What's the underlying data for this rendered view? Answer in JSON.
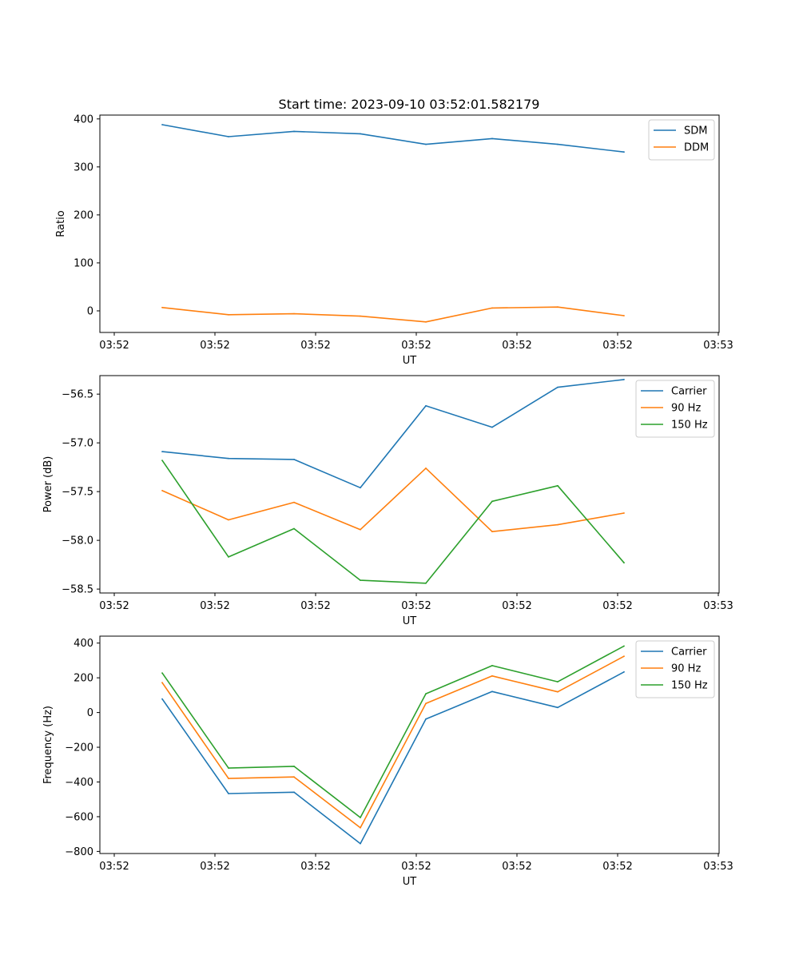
{
  "chart_data": [
    {
      "type": "line",
      "title": "Start time: 2023-09-10 03:52:01.582179",
      "xlabel": "UT",
      "ylabel": "Ratio",
      "xtick_labels": [
        "03:52",
        "03:52",
        "03:52",
        "03:52",
        "03:52",
        "03:52",
        "03:53"
      ],
      "ylim": [
        -45,
        408
      ],
      "yticks": [
        0,
        100,
        200,
        300,
        400
      ],
      "ytick_labels": [
        "0",
        "100",
        "200",
        "300",
        "400"
      ],
      "legend_position": "top-right",
      "series": [
        {
          "name": "SDM",
          "color": "#1f77b4",
          "values": [
            388,
            363,
            374,
            369,
            347,
            359,
            347,
            331
          ]
        },
        {
          "name": "DDM",
          "color": "#ff7f0e",
          "values": [
            7,
            -8,
            -6,
            -11,
            -23,
            6,
            8,
            -10
          ]
        }
      ]
    },
    {
      "type": "line",
      "title": "",
      "xlabel": "UT",
      "ylabel": "Power (dB)",
      "xtick_labels": [
        "03:52",
        "03:52",
        "03:52",
        "03:52",
        "03:52",
        "03:52",
        "03:53"
      ],
      "ylim": [
        -58.54,
        -56.31
      ],
      "yticks": [
        -58.5,
        -58.0,
        -57.5,
        -57.0,
        -56.5
      ],
      "ytick_labels": [
        "−58.5",
        "−58.0",
        "−57.5",
        "−57.0",
        "−56.5"
      ],
      "legend_position": "top-right",
      "series": [
        {
          "name": "Carrier",
          "color": "#1f77b4",
          "values": [
            -57.09,
            -57.16,
            -57.17,
            -57.46,
            -56.62,
            -56.84,
            -56.43,
            -56.35
          ]
        },
        {
          "name": "90 Hz",
          "color": "#ff7f0e",
          "values": [
            -57.49,
            -57.79,
            -57.61,
            -57.89,
            -57.26,
            -57.91,
            -57.84,
            -57.72
          ]
        },
        {
          "name": "150 Hz",
          "color": "#2ca02c",
          "values": [
            -57.18,
            -58.17,
            -57.88,
            -58.41,
            -58.44,
            -57.6,
            -57.44,
            -58.23
          ]
        }
      ]
    },
    {
      "type": "line",
      "title": "",
      "xlabel": "UT",
      "ylabel": "Frequency (Hz)",
      "xtick_labels": [
        "03:52",
        "03:52",
        "03:52",
        "03:52",
        "03:52",
        "03:52",
        "03:53"
      ],
      "ylim": [
        -812,
        440
      ],
      "yticks": [
        -800,
        -600,
        -400,
        -200,
        0,
        200,
        400
      ],
      "ytick_labels": [
        "−800",
        "−600",
        "−400",
        "−200",
        "0",
        "200",
        "400"
      ],
      "legend_position": "top-right",
      "series": [
        {
          "name": "Carrier",
          "color": "#1f77b4",
          "values": [
            78,
            -467,
            -459,
            -755,
            -38,
            121,
            29,
            234
          ]
        },
        {
          "name": "90 Hz",
          "color": "#ff7f0e",
          "values": [
            172,
            -380,
            -371,
            -664,
            52,
            211,
            119,
            324
          ]
        },
        {
          "name": "150 Hz",
          "color": "#2ca02c",
          "values": [
            228,
            -320,
            -310,
            -605,
            108,
            270,
            177,
            383
          ]
        }
      ]
    }
  ]
}
